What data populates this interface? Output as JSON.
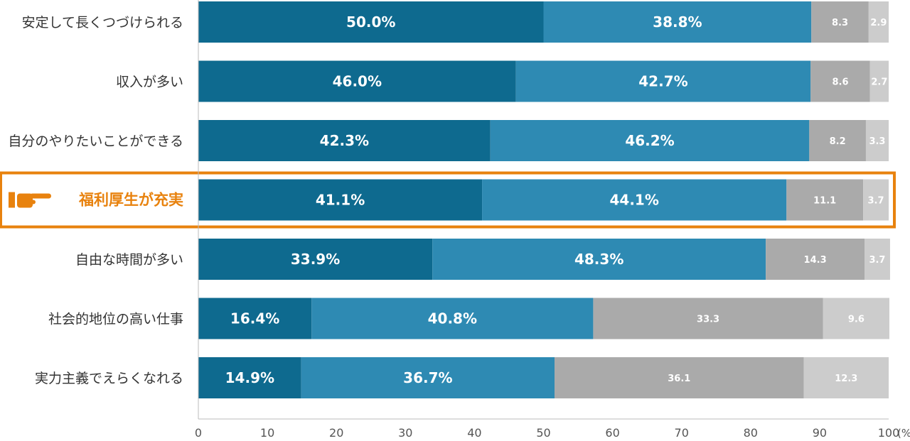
{
  "chart_data": {
    "type": "bar",
    "orientation": "horizontal",
    "stacked": true,
    "categories": [
      "安定して長くつづけられる",
      "収入が多い",
      "自分のやりたいことができる",
      "福利厚生が充実",
      "自由な時間が多い",
      "社会的地位の高い仕事",
      "実力主義でえらくなれる"
    ],
    "highlighted_category": "福利厚生が充実",
    "highlight_icon": "pointing-hand-icon",
    "series": [
      {
        "values": [
          50.0,
          46.0,
          42.3,
          41.1,
          33.9,
          16.4,
          14.9
        ],
        "labels": [
          "50.0%",
          "46.0%",
          "42.3%",
          "41.1%",
          "33.9%",
          "16.4%",
          "14.9%"
        ],
        "color": "#0e6a8f"
      },
      {
        "values": [
          38.8,
          42.7,
          46.2,
          44.1,
          48.3,
          40.8,
          36.7
        ],
        "labels": [
          "38.8%",
          "42.7%",
          "46.2%",
          "44.1%",
          "48.3%",
          "40.8%",
          "36.7%"
        ],
        "color": "#2e8ab3"
      },
      {
        "values": [
          8.3,
          8.6,
          8.2,
          11.1,
          14.3,
          33.3,
          36.1
        ],
        "labels": [
          "8.3",
          "8.6",
          "8.2",
          "11.1",
          "14.3",
          "33.3",
          "36.1"
        ],
        "color": "#aaaaaa"
      },
      {
        "values": [
          2.9,
          2.7,
          3.3,
          3.7,
          3.7,
          9.6,
          12.3
        ],
        "labels": [
          "2.9",
          "2.7",
          "3.3",
          "3.7",
          "3.7",
          "9.6",
          "12.3"
        ],
        "color": "#cccccc"
      }
    ],
    "x_ticks": [
      "0",
      "10",
      "20",
      "30",
      "40",
      "50",
      "60",
      "70",
      "80",
      "90",
      "100"
    ],
    "x_unit": "(%)",
    "xlim": [
      0,
      100
    ],
    "highlight_color": "#e8820e",
    "grid": false,
    "legend": "none"
  }
}
